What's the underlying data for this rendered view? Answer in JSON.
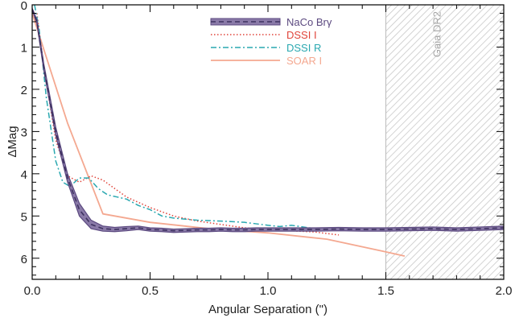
{
  "chart_data": {
    "type": "line",
    "title": "",
    "xlabel": "Angular Separation (\")",
    "ylabel": "ΔMag",
    "xlim": [
      0,
      2.0
    ],
    "ylim": [
      6.5,
      0
    ],
    "y_inverted": true,
    "x_ticks": [
      0,
      0.5,
      1.0,
      1.5,
      2.0
    ],
    "x_tick_labels": [
      "0.0",
      "0.5",
      "1.0",
      "1.5",
      "2.0"
    ],
    "y_ticks": [
      0,
      1,
      2,
      3,
      4,
      5,
      6
    ],
    "y_tick_labels": [
      "0",
      "1",
      "2",
      "3",
      "4",
      "5",
      "6"
    ],
    "grid": false,
    "legend_placement": "top-center",
    "shaded_region": {
      "x_start": 1.5,
      "x_end": 2.0,
      "label": "Gaia DR2",
      "color": "#b8b8b8"
    },
    "series": [
      {
        "name": "NaCo Brγ",
        "style": "dashed-band",
        "color": "#5c4a80",
        "band_color": "#8a7aa8",
        "x": [
          0.0,
          0.02,
          0.05,
          0.1,
          0.15,
          0.2,
          0.25,
          0.3,
          0.35,
          0.4,
          0.45,
          0.5,
          0.55,
          0.6,
          0.65,
          0.7,
          0.75,
          0.8,
          0.85,
          0.9,
          0.95,
          1.0,
          1.1,
          1.2,
          1.3,
          1.4,
          1.5,
          1.6,
          1.7,
          1.8,
          1.9,
          2.0
        ],
        "y": [
          0.1,
          0.4,
          1.5,
          3.0,
          4.1,
          4.85,
          5.2,
          5.3,
          5.32,
          5.3,
          5.28,
          5.32,
          5.33,
          5.35,
          5.34,
          5.33,
          5.33,
          5.32,
          5.33,
          5.33,
          5.32,
          5.32,
          5.32,
          5.32,
          5.31,
          5.32,
          5.32,
          5.31,
          5.3,
          5.32,
          5.3,
          5.28
        ],
        "band_halfwidth": [
          0.02,
          0.05,
          0.08,
          0.1,
          0.1,
          0.15,
          0.1,
          0.06,
          0.05,
          0.05,
          0.04,
          0.04,
          0.04,
          0.04,
          0.04,
          0.04,
          0.04,
          0.04,
          0.04,
          0.04,
          0.04,
          0.04,
          0.04,
          0.04,
          0.04,
          0.04,
          0.04,
          0.04,
          0.04,
          0.04,
          0.04,
          0.04
        ]
      },
      {
        "name": "DSSI I",
        "style": "dotted",
        "color": "#e0443a",
        "x": [
          0.02,
          0.05,
          0.1,
          0.15,
          0.2,
          0.25,
          0.3,
          0.35,
          0.4,
          0.5,
          0.6,
          0.7,
          0.8,
          0.9,
          1.0,
          1.1,
          1.2,
          1.3
        ],
        "y": [
          0.2,
          1.5,
          3.2,
          4.05,
          4.2,
          4.05,
          4.15,
          4.35,
          4.55,
          4.8,
          5.0,
          5.12,
          5.2,
          5.28,
          5.33,
          5.35,
          5.38,
          5.45
        ]
      },
      {
        "name": "DSSI R",
        "style": "dash-dot",
        "color": "#2aa8b0",
        "x": [
          0.01,
          0.03,
          0.06,
          0.1,
          0.13,
          0.16,
          0.2,
          0.24,
          0.28,
          0.32,
          0.36,
          0.4,
          0.45,
          0.5,
          0.55,
          0.6,
          0.7,
          0.8,
          0.9,
          1.0,
          1.05,
          1.1,
          1.2,
          1.3
        ],
        "y": [
          0.0,
          0.6,
          2.2,
          3.7,
          4.2,
          4.3,
          4.1,
          4.1,
          4.35,
          4.5,
          4.55,
          4.6,
          4.75,
          4.85,
          5.0,
          5.05,
          5.1,
          5.12,
          5.15,
          5.22,
          5.25,
          5.22,
          5.3,
          5.3
        ]
      },
      {
        "name": "SOAR I",
        "style": "solid",
        "color": "#f4a890",
        "x": [
          0.0,
          0.15,
          0.3,
          0.5,
          0.75,
          1.0,
          1.25,
          1.5,
          1.58
        ],
        "y": [
          0.2,
          2.8,
          4.95,
          5.15,
          5.3,
          5.4,
          5.55,
          5.85,
          5.95
        ]
      }
    ]
  }
}
